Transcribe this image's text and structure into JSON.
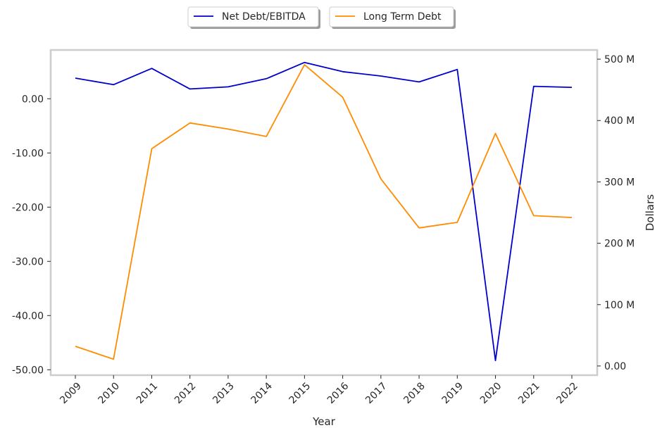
{
  "chart_data": {
    "type": "line",
    "title": "",
    "xlabel": "Year",
    "ylabel_left": "",
    "ylabel_right": "Dollars",
    "categories": [
      "2009",
      "2010",
      "2011",
      "2012",
      "2013",
      "2014",
      "2015",
      "2016",
      "2017",
      "2018",
      "2019",
      "2020",
      "2021",
      "2022"
    ],
    "series": [
      {
        "name": "Net Debt/EBITDA",
        "axis": "left",
        "color": "#0000cc",
        "values": [
          3.8,
          2.6,
          5.6,
          1.8,
          2.2,
          3.7,
          6.7,
          5.0,
          4.2,
          3.1,
          5.4,
          -48.3,
          2.3,
          2.1
        ]
      },
      {
        "name": "Long Term Debt",
        "axis": "right",
        "color": "#ff8c00",
        "values": [
          32,
          11,
          354,
          396,
          386,
          374,
          491,
          438,
          305,
          225,
          234,
          379,
          245,
          242
        ]
      }
    ],
    "left_axis": {
      "ylim": [
        -51,
        9
      ],
      "ticks": [
        0,
        -10,
        -20,
        -30,
        -40,
        -50
      ],
      "tick_labels": [
        "0.00",
        "-10.00",
        "-20.00",
        "-30.00",
        "-40.00",
        "-50.00"
      ]
    },
    "right_axis": {
      "ylim": [
        -15,
        515
      ],
      "ticks": [
        0,
        100,
        200,
        300,
        400,
        500
      ],
      "tick_labels": [
        "0.00",
        "100 M",
        "200 M",
        "300 M",
        "400 M",
        "500 M"
      ]
    },
    "grid": false,
    "legend_position": "top-center",
    "frame_color": "#cccccc"
  }
}
